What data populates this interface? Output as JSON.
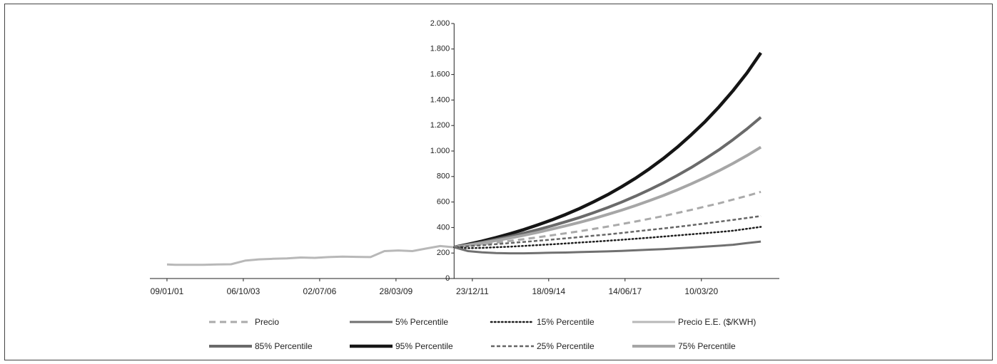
{
  "chart_data": {
    "type": "line",
    "x": [
      "2001-01-09",
      "2001-04-28",
      "2001-10-28",
      "2002-04-28",
      "2002-10-28",
      "2003-04-28",
      "2003-10-28",
      "2004-04-28",
      "2004-10-28",
      "2005-04-28",
      "2005-10-28",
      "2006-04-28",
      "2006-10-28",
      "2007-04-28",
      "2007-10-28",
      "2008-04-28",
      "2008-10-28",
      "2009-04-28",
      "2009-10-28",
      "2010-04-28",
      "2010-10-28",
      "2011-04-28",
      "2011-10-28",
      "2012-04-28",
      "2012-10-28",
      "2013-04-28",
      "2013-10-28",
      "2014-04-28",
      "2014-10-28",
      "2015-04-28",
      "2015-10-28",
      "2016-04-28",
      "2016-10-28",
      "2017-04-28",
      "2017-10-28",
      "2018-04-28",
      "2018-10-28",
      "2019-04-28",
      "2019-10-28",
      "2020-04-28",
      "2020-10-28",
      "2021-04-28",
      "2021-10-28",
      "2022-04-28"
    ],
    "series": [
      {
        "name": "Precio",
        "color": "#aaaaaa",
        "style": "dashed",
        "values": [
          null,
          null,
          null,
          null,
          null,
          null,
          null,
          null,
          null,
          null,
          null,
          null,
          null,
          null,
          null,
          null,
          null,
          null,
          null,
          null,
          null,
          245,
          257,
          269,
          281,
          295,
          309,
          323,
          339,
          355,
          371,
          389,
          407,
          427,
          447,
          468,
          490,
          514,
          538,
          564,
          590,
          619,
          648,
          680
        ]
      },
      {
        "name": "5% Percentile",
        "color": "#707070",
        "style": "solid",
        "values": [
          null,
          null,
          null,
          null,
          null,
          null,
          null,
          null,
          null,
          null,
          null,
          null,
          null,
          null,
          null,
          null,
          null,
          null,
          null,
          null,
          null,
          245,
          215,
          205,
          200,
          198,
          198,
          200,
          202,
          204,
          207,
          210,
          213,
          217,
          221,
          226,
          231,
          237,
          243,
          250,
          257,
          265,
          278,
          290
        ]
      },
      {
        "name": "15% Percentile",
        "color": "#1e1e1e",
        "style": "dotted",
        "values": [
          null,
          null,
          null,
          null,
          null,
          null,
          null,
          null,
          null,
          null,
          null,
          null,
          null,
          null,
          null,
          null,
          null,
          null,
          null,
          null,
          null,
          245,
          238,
          240,
          245,
          250,
          256,
          262,
          268,
          275,
          282,
          289,
          296,
          304,
          312,
          320,
          329,
          338,
          347,
          356,
          365,
          375,
          390,
          405
        ]
      },
      {
        "name": "Precio E.E. ($/KWH)",
        "color": "#b8b8b8",
        "style": "solid",
        "values": [
          110,
          108,
          107,
          108,
          110,
          112,
          140,
          150,
          155,
          158,
          165,
          162,
          168,
          172,
          170,
          168,
          215,
          220,
          215,
          235,
          255,
          245,
          null,
          null,
          null,
          null,
          null,
          null,
          null,
          null,
          null,
          null,
          null,
          null,
          null,
          null,
          null,
          null,
          null,
          null,
          null,
          null,
          null,
          null
        ]
      },
      {
        "name": "85% Percentile",
        "color": "#6a6a6a",
        "style": "solid",
        "values": [
          null,
          null,
          null,
          null,
          null,
          null,
          null,
          null,
          null,
          null,
          null,
          null,
          null,
          null,
          null,
          null,
          null,
          null,
          null,
          null,
          null,
          245,
          264,
          284,
          306,
          330,
          356,
          383,
          413,
          445,
          479,
          516,
          556,
          599,
          646,
          696,
          750,
          808,
          870,
          938,
          1010,
          1089,
          1173,
          1265
        ]
      },
      {
        "name": "95% Percentile",
        "color": "#151515",
        "style": "solid",
        "values": [
          null,
          null,
          null,
          null,
          null,
          null,
          null,
          null,
          null,
          null,
          null,
          null,
          null,
          null,
          null,
          null,
          null,
          null,
          null,
          null,
          null,
          245,
          268,
          293,
          321,
          351,
          384,
          420,
          459,
          502,
          549,
          601,
          657,
          719,
          786,
          860,
          941,
          1029,
          1126,
          1231,
          1347,
          1473,
          1612,
          1770
        ]
      },
      {
        "name": "25% Percentile",
        "color": "#666666",
        "style": "dashed-fine",
        "values": [
          null,
          null,
          null,
          null,
          null,
          null,
          null,
          null,
          null,
          null,
          null,
          null,
          null,
          null,
          null,
          null,
          null,
          null,
          null,
          null,
          null,
          245,
          253,
          261,
          269,
          278,
          287,
          296,
          305,
          315,
          325,
          336,
          346,
          357,
          369,
          381,
          393,
          405,
          418,
          432,
          446,
          460,
          475,
          490
        ]
      },
      {
        "name": "75% Percentile",
        "color": "#a6a6a6",
        "style": "solid",
        "values": [
          null,
          null,
          null,
          null,
          null,
          null,
          null,
          null,
          null,
          null,
          null,
          null,
          null,
          null,
          null,
          null,
          null,
          null,
          null,
          null,
          null,
          245,
          262,
          279,
          298,
          318,
          339,
          362,
          387,
          413,
          440,
          470,
          502,
          536,
          572,
          610,
          651,
          695,
          742,
          792,
          846,
          903,
          964,
          1030
        ]
      }
    ],
    "xlim": [
      "2000-05-30",
      "2022-12-26"
    ],
    "xticks": [
      {
        "value": "2001-01-09",
        "label": "09/01/01"
      },
      {
        "value": "2003-10-06",
        "label": "06/10/03"
      },
      {
        "value": "2006-07-02",
        "label": "02/07/06"
      },
      {
        "value": "2009-03-28",
        "label": "28/03/09"
      },
      {
        "value": "2011-12-23",
        "label": "23/12/11"
      },
      {
        "value": "2014-09-18",
        "label": "18/09/14"
      },
      {
        "value": "2017-06-14",
        "label": "14/06/17"
      },
      {
        "value": "2020-03-10",
        "label": "10/03/20"
      }
    ],
    "ylim": [
      0,
      2000
    ],
    "yticks": [
      0,
      200,
      400,
      600,
      800,
      {
        "value": 1000,
        "label": "1.000"
      },
      {
        "value": 1200,
        "label": "1.200"
      },
      {
        "value": 1400,
        "label": "1.400"
      },
      {
        "value": 1600,
        "label": "1.600"
      },
      {
        "value": 1800,
        "label": "1.800"
      },
      {
        "value": 2000,
        "label": "2.000"
      }
    ],
    "legend": "bottom"
  }
}
